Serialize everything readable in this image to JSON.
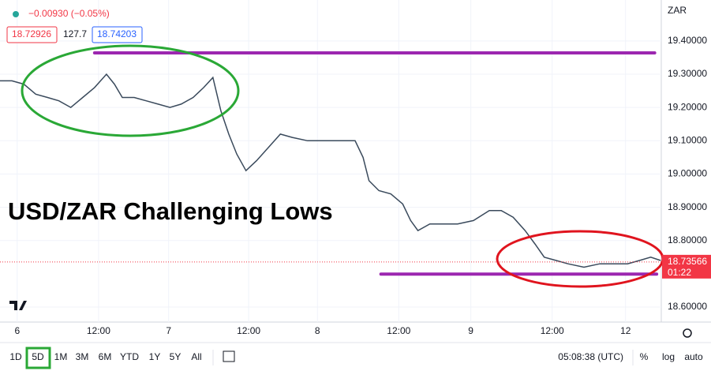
{
  "header": {
    "change": "−0.00930 (−0.05%)",
    "bid": "18.72926",
    "spread": "127.7",
    "ask": "18.74203"
  },
  "chart_data": {
    "type": "line",
    "title": "USD/ZAR Challenging Lows",
    "currency": "ZAR",
    "color": "#3a4a5c",
    "grid": true,
    "x": [
      0,
      1.8,
      3.6,
      5.4,
      7.2,
      8.9,
      10.7,
      12.5,
      14.3,
      16.1,
      17.3,
      18.5,
      20.3,
      22.1,
      23.9,
      25.7,
      27.4,
      29.2,
      30.8,
      32.2,
      33.4,
      34.6,
      35.8,
      37.2,
      38.8,
      40.6,
      42.4,
      44.2,
      46.5,
      48.9,
      51.3,
      53.7,
      54.9,
      55.8,
      57.3,
      59.1,
      60.9,
      62.1,
      63.2,
      65.0,
      66.8,
      69.2,
      71.6,
      74.0,
      75.8,
      77.6,
      79.4,
      80.9,
      82.3,
      84.1,
      85.9,
      88.3,
      90.7,
      93.1,
      94.9,
      96.7,
      98.4,
      99.9
    ],
    "values": [
      19.28,
      19.28,
      19.27,
      19.24,
      19.23,
      19.22,
      19.2,
      19.23,
      19.26,
      19.3,
      19.27,
      19.23,
      19.23,
      19.22,
      19.21,
      19.2,
      19.21,
      19.23,
      19.26,
      19.29,
      19.19,
      19.12,
      19.06,
      19.01,
      19.04,
      19.08,
      19.12,
      19.11,
      19.1,
      19.1,
      19.1,
      19.1,
      19.05,
      18.98,
      18.95,
      18.94,
      18.91,
      18.86,
      18.83,
      18.85,
      18.85,
      18.85,
      18.86,
      18.89,
      18.89,
      18.87,
      18.83,
      18.79,
      18.75,
      18.74,
      18.73,
      18.72,
      18.73,
      18.73,
      18.73,
      18.74,
      18.75,
      18.74
    ],
    "xlim": [
      0,
      100
    ],
    "xticks": [
      {
        "value": 2.6,
        "label": "6"
      },
      {
        "value": 14.9,
        "label": "12:00"
      },
      {
        "value": 25.5,
        "label": "7"
      },
      {
        "value": 37.6,
        "label": "12:00"
      },
      {
        "value": 48,
        "label": "8"
      },
      {
        "value": 60.3,
        "label": "12:00"
      },
      {
        "value": 71.2,
        "label": "9"
      },
      {
        "value": 83.5,
        "label": "12:00"
      },
      {
        "value": 94.6,
        "label": "12"
      }
    ],
    "ylim": [
      18.555,
      19.523
    ],
    "yticks": [
      {
        "value": 18.6,
        "label": "18.60000"
      },
      {
        "value": 18.8,
        "label": "18.80000"
      },
      {
        "value": 18.9,
        "label": "18.90000"
      },
      {
        "value": 19.0,
        "label": "19.00000"
      },
      {
        "value": 19.1,
        "label": "19.10000"
      },
      {
        "value": 19.2,
        "label": "19.20000"
      },
      {
        "value": 19.3,
        "label": "19.30000"
      },
      {
        "value": 19.4,
        "label": "19.40000"
      }
    ],
    "last_price": {
      "value": 18.73566,
      "label": "18.73566",
      "countdown": "01:22"
    },
    "levels": [
      {
        "value": 19.364,
        "x": [
          14.3,
          99
        ]
      },
      {
        "value": 18.699,
        "x": [
          57.6,
          99.3
        ]
      }
    ]
  },
  "toolbar": {
    "ranges": [
      "1D",
      "5D",
      "1M",
      "3M",
      "6M",
      "YTD",
      "1Y",
      "5Y",
      "All"
    ],
    "selected": 1,
    "time": "05:08:38 (UTC)",
    "percent": "%",
    "log": "log",
    "auto": "auto"
  }
}
